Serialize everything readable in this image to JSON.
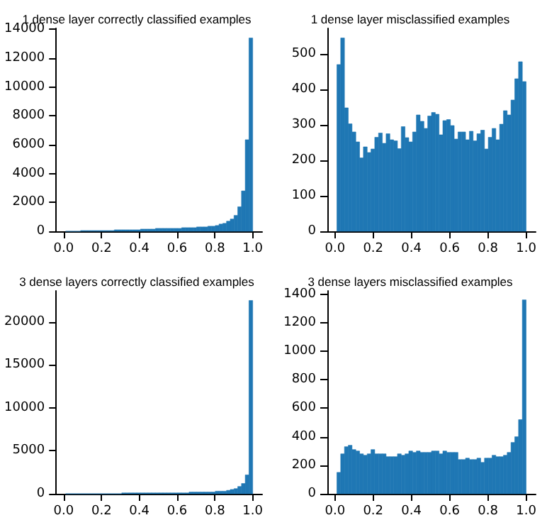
{
  "chart_data": [
    {
      "type": "histogram",
      "title": "1 dense layer correctly classified examples",
      "color": "#1f77b4",
      "bins": [
        0.01,
        0.0298,
        0.0496,
        0.0694,
        0.0892,
        0.109,
        0.1288,
        0.1486,
        0.1684,
        0.1882,
        0.208,
        0.2278,
        0.2476,
        0.2674,
        0.2872,
        0.307,
        0.3268,
        0.3466,
        0.3664,
        0.3862,
        0.406,
        0.4258,
        0.4456,
        0.4654,
        0.4852,
        0.505,
        0.5248,
        0.5446,
        0.5644,
        0.5842,
        0.604,
        0.6238,
        0.6436,
        0.6634,
        0.6832,
        0.703,
        0.7228,
        0.7426,
        0.7624,
        0.7822,
        0.802,
        0.8218,
        0.8416,
        0.8614,
        0.8812,
        0.901,
        0.9208,
        0.9406,
        0.9604,
        0.9802,
        1.0
      ],
      "values": [
        0,
        0,
        0,
        0,
        50,
        50,
        50,
        50,
        50,
        50,
        50,
        50,
        50,
        100,
        100,
        100,
        100,
        100,
        100,
        100,
        150,
        150,
        150,
        150,
        200,
        200,
        200,
        200,
        200,
        200,
        200,
        250,
        250,
        250,
        250,
        300,
        300,
        300,
        350,
        350,
        400,
        500,
        550,
        700,
        850,
        1100,
        1700,
        2800,
        6350,
        13400
      ],
      "xlim": [
        -0.04,
        1.05
      ],
      "xticks": [
        {
          "value": 0,
          "label": "0.0"
        },
        {
          "value": 0.2,
          "label": "0.2"
        },
        {
          "value": 0.4,
          "label": "0.4"
        },
        {
          "value": 0.6,
          "label": "0.6"
        },
        {
          "value": 0.8,
          "label": "0.8"
        },
        {
          "value": 1,
          "label": "1.0"
        }
      ],
      "ylim": [
        0,
        14070
      ],
      "yticks": [
        0,
        2000,
        4000,
        6000,
        8000,
        10000,
        12000,
        14000
      ],
      "grid": false
    },
    {
      "type": "histogram",
      "title": "1 dense layer misclassified examples",
      "color": "#1f77b4",
      "bins": [
        0.01,
        0.0298,
        0.0496,
        0.0694,
        0.0892,
        0.109,
        0.1288,
        0.1486,
        0.1684,
        0.1882,
        0.208,
        0.2278,
        0.2476,
        0.2674,
        0.2872,
        0.307,
        0.3268,
        0.3466,
        0.3664,
        0.3862,
        0.406,
        0.4258,
        0.4456,
        0.4654,
        0.4852,
        0.505,
        0.5248,
        0.5446,
        0.5644,
        0.5842,
        0.604,
        0.6238,
        0.6436,
        0.6634,
        0.6832,
        0.703,
        0.7228,
        0.7426,
        0.7624,
        0.7822,
        0.802,
        0.8218,
        0.8416,
        0.8614,
        0.8812,
        0.901,
        0.9208,
        0.9406,
        0.9604,
        0.9802,
        1.0
      ],
      "values": [
        470,
        545,
        348,
        303,
        280,
        252,
        207,
        238,
        222,
        232,
        265,
        277,
        248,
        275,
        258,
        255,
        233,
        295,
        264,
        252,
        280,
        328,
        310,
        290,
        325,
        335,
        330,
        272,
        312,
        315,
        298,
        260,
        280,
        280,
        258,
        282,
        255,
        275,
        285,
        232,
        265,
        290,
        258,
        302,
        340,
        328,
        370,
        430,
        478,
        422
      ],
      "xlim": [
        -0.04,
        1.05
      ],
      "xticks": [
        {
          "value": 0,
          "label": "0.0"
        },
        {
          "value": 0.2,
          "label": "0.2"
        },
        {
          "value": 0.4,
          "label": "0.4"
        },
        {
          "value": 0.6,
          "label": "0.6"
        },
        {
          "value": 0.8,
          "label": "0.8"
        },
        {
          "value": 1,
          "label": "1.0"
        }
      ],
      "ylim": [
        0,
        572
      ],
      "yticks": [
        0,
        100,
        200,
        300,
        400,
        500
      ],
      "grid": false
    },
    {
      "type": "histogram",
      "title": "3 dense layers correctly classified examples",
      "color": "#1f77b4",
      "bins": [
        0.01,
        0.0298,
        0.0496,
        0.0694,
        0.0892,
        0.109,
        0.1288,
        0.1486,
        0.1684,
        0.1882,
        0.208,
        0.2278,
        0.2476,
        0.2674,
        0.2872,
        0.307,
        0.3268,
        0.3466,
        0.3664,
        0.3862,
        0.406,
        0.4258,
        0.4456,
        0.4654,
        0.4852,
        0.505,
        0.5248,
        0.5446,
        0.5644,
        0.5842,
        0.604,
        0.6238,
        0.6436,
        0.6634,
        0.6832,
        0.703,
        0.7228,
        0.7426,
        0.7624,
        0.7822,
        0.802,
        0.8218,
        0.8416,
        0.8614,
        0.8812,
        0.901,
        0.9208,
        0.9406,
        0.9604,
        0.9802,
        1.0
      ],
      "values": [
        0,
        0,
        0,
        0,
        0,
        0,
        0,
        0,
        0,
        0,
        0,
        0,
        0,
        0,
        0,
        100,
        100,
        100,
        100,
        100,
        100,
        100,
        100,
        100,
        100,
        100,
        100,
        100,
        100,
        100,
        100,
        100,
        100,
        200,
        200,
        200,
        200,
        200,
        200,
        200,
        300,
        300,
        300,
        400,
        500,
        600,
        850,
        1200,
        2200,
        22500
      ],
      "xlim": [
        -0.04,
        1.05
      ],
      "xticks": [
        {
          "value": 0,
          "label": "0.0"
        },
        {
          "value": 0.2,
          "label": "0.2"
        },
        {
          "value": 0.4,
          "label": "0.4"
        },
        {
          "value": 0.6,
          "label": "0.6"
        },
        {
          "value": 0.8,
          "label": "0.8"
        },
        {
          "value": 1,
          "label": "1.0"
        }
      ],
      "ylim": [
        0,
        23625
      ],
      "yticks": [
        0,
        5000,
        10000,
        15000,
        20000
      ],
      "grid": false
    },
    {
      "type": "histogram",
      "title": "3 dense layers misclassified examples",
      "color": "#1f77b4",
      "bins": [
        0.01,
        0.0298,
        0.0496,
        0.0694,
        0.0892,
        0.109,
        0.1288,
        0.1486,
        0.1684,
        0.1882,
        0.208,
        0.2278,
        0.2476,
        0.2674,
        0.2872,
        0.307,
        0.3268,
        0.3466,
        0.3664,
        0.3862,
        0.406,
        0.4258,
        0.4456,
        0.4654,
        0.4852,
        0.505,
        0.5248,
        0.5446,
        0.5644,
        0.5842,
        0.604,
        0.6238,
        0.6436,
        0.6634,
        0.6832,
        0.703,
        0.7228,
        0.7426,
        0.7624,
        0.7822,
        0.802,
        0.8218,
        0.8416,
        0.8614,
        0.8812,
        0.901,
        0.9208,
        0.9406,
        0.9604,
        0.9802,
        1.0
      ],
      "values": [
        150,
        280,
        330,
        340,
        310,
        300,
        280,
        270,
        280,
        310,
        280,
        280,
        280,
        260,
        260,
        260,
        280,
        270,
        280,
        300,
        290,
        300,
        290,
        290,
        290,
        300,
        300,
        280,
        300,
        290,
        290,
        290,
        240,
        240,
        250,
        240,
        240,
        250,
        220,
        250,
        250,
        270,
        260,
        260,
        270,
        290,
        360,
        400,
        520,
        1360
      ],
      "xlim": [
        -0.04,
        1.05
      ],
      "xticks": [
        {
          "value": 0,
          "label": "0.0"
        },
        {
          "value": 0.2,
          "label": "0.2"
        },
        {
          "value": 0.4,
          "label": "0.4"
        },
        {
          "value": 0.6,
          "label": "0.6"
        },
        {
          "value": 0.8,
          "label": "0.8"
        },
        {
          "value": 1,
          "label": "1.0"
        }
      ],
      "ylim": [
        0,
        1423
      ],
      "yticks": [
        0,
        200,
        400,
        600,
        800,
        1000,
        1200,
        1400
      ],
      "grid": false
    }
  ]
}
